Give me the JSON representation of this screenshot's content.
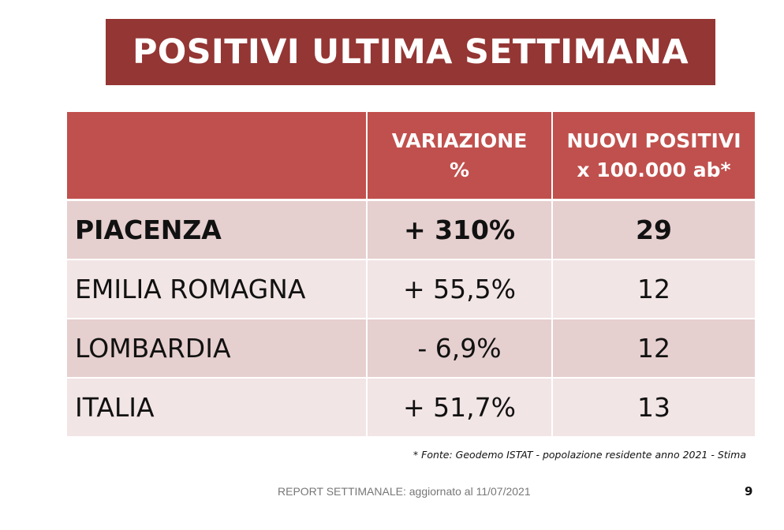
{
  "title": "POSITIVI ULTIMA SETTIMANA",
  "table": {
    "headers": [
      "",
      "VARIAZIONE\n%",
      "NUOVI POSITIVI\nx 100.000 ab*"
    ],
    "rows": [
      {
        "name": "PIACENZA",
        "variation": "+ 310%",
        "new_positives": "29"
      },
      {
        "name": "EMILIA ROMAGNA",
        "variation": "+ 55,5%",
        "new_positives": "12"
      },
      {
        "name": "LOMBARDIA",
        "variation": "- 6,9%",
        "new_positives": "12"
      },
      {
        "name": "ITALIA",
        "variation": "+ 51,7%",
        "new_positives": "13"
      }
    ]
  },
  "footnote": "* Fonte: Geodemo ISTAT - popolazione residente anno 2021 - Stima",
  "footer": "REPORT SETTIMANALE: aggiornato al 11/07/2021",
  "page_number": "9",
  "colors": {
    "title_background": "#943634",
    "header_background": "#c0504d",
    "row_odd": "#e6cfcf",
    "row_even": "#f2e5e5"
  }
}
